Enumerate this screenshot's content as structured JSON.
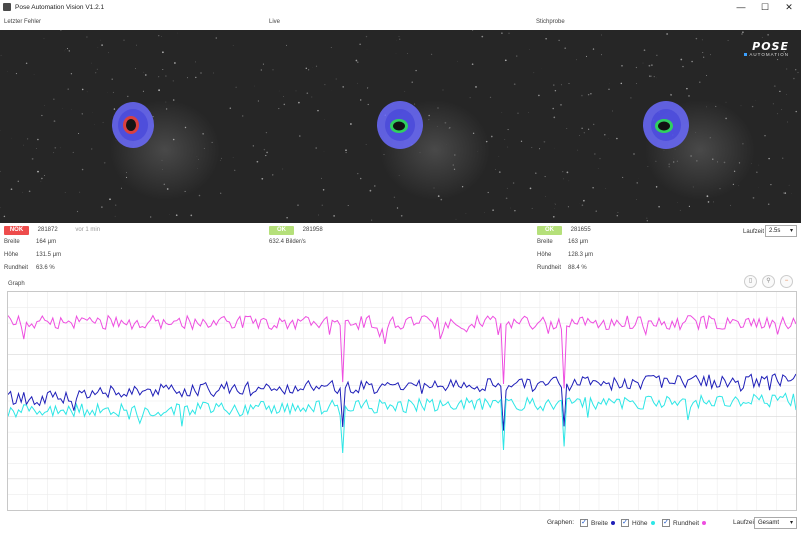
{
  "window": {
    "title": "Pose Automation Vision V1.2.1",
    "minimize": "—",
    "maximize": "☐",
    "close": "✕"
  },
  "sections": {
    "last_error": "Letzter Fehler",
    "live": "Live",
    "sample": "Stichprobe"
  },
  "logo": {
    "main": "POSE",
    "sub": "AUTOMATION"
  },
  "last_error": {
    "status": "NOK",
    "id": "281872",
    "age": "vor 1 min",
    "width_label": "Breite",
    "width_value": "164 μm",
    "height_label": "Höhe",
    "height_value": "131.5 μm",
    "round_label": "Rundheit",
    "round_value": "63.6 %"
  },
  "live": {
    "status": "OK",
    "id": "281958",
    "fps": "632.4 Bilder/s"
  },
  "sample": {
    "status": "OK",
    "id": "281655",
    "width_label": "Breite",
    "width_value": "163 μm",
    "height_label": "Höhe",
    "height_value": "128.3 μm",
    "round_label": "Rundheit",
    "round_value": "88.4 %"
  },
  "runtime": {
    "label": "Laufzeit",
    "value": "2.5s"
  },
  "graph": {
    "title": "Graph"
  },
  "legend": {
    "label": "Graphen:",
    "breite": "Breite",
    "hoehe": "Höhe",
    "rundheit": "Rundheit",
    "runtime_label": "Laufzeit",
    "runtime_value": "Gesamt",
    "colors": {
      "breite": "#1f1fb8",
      "hoehe": "#2ee6e6",
      "rundheit": "#ee4ee0"
    }
  },
  "chart_data": {
    "type": "line",
    "x_count": 300,
    "grid": true,
    "series": [
      {
        "name": "Rundheit",
        "color": "#ee4ee0",
        "baseline": 0.14
      },
      {
        "name": "Breite",
        "color": "#1f1fb8",
        "baseline": 0.46
      },
      {
        "name": "Höhe",
        "color": "#2ee6e6",
        "baseline": 0.55
      }
    ]
  }
}
